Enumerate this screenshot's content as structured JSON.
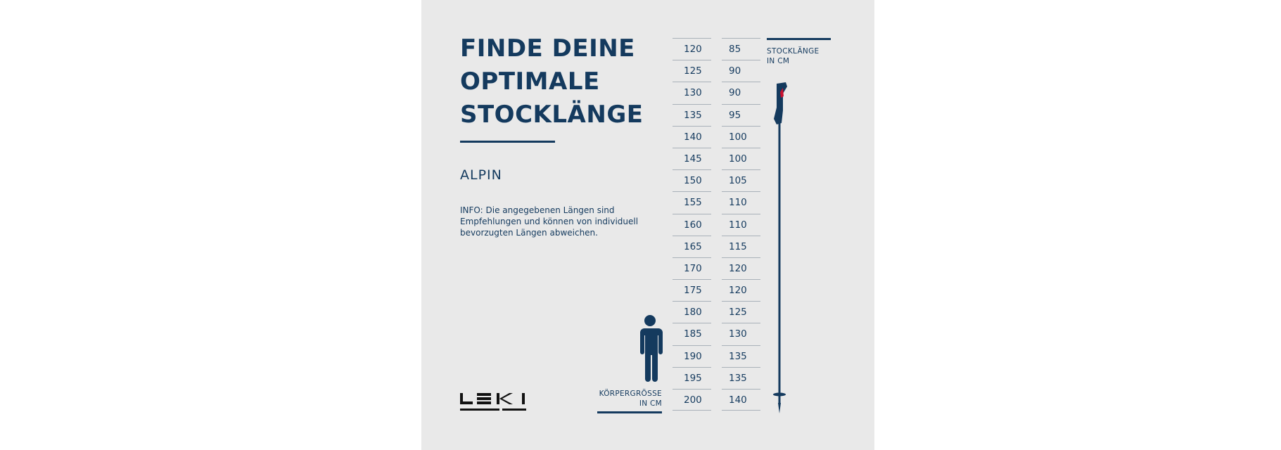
{
  "title": "FINDE DEINE OPTIMALE STOCKLÄNGE",
  "subtitle": "ALPIN",
  "info": "INFO: Die angegebenen Längen sind Empfehlungen und können von individuell bevorzugten Längen abweichen.",
  "logo_text": "LEKI",
  "height_label_line1": "KÖRPERGRÖSSE",
  "height_label_line2": "IN CM",
  "pole_label_line1": "STOCKLÄNGE",
  "pole_label_line2": "IN CM",
  "colors": {
    "primary": "#143a5e",
    "background": "#e9e9e9",
    "accent": "#c8102e"
  },
  "table": {
    "columns": [
      "Körpergröße in cm",
      "Stocklänge in cm"
    ],
    "rows": [
      [
        "120",
        "85"
      ],
      [
        "125",
        "90"
      ],
      [
        "130",
        "90"
      ],
      [
        "135",
        "95"
      ],
      [
        "140",
        "100"
      ],
      [
        "145",
        "100"
      ],
      [
        "150",
        "105"
      ],
      [
        "155",
        "110"
      ],
      [
        "160",
        "110"
      ],
      [
        "165",
        "115"
      ],
      [
        "170",
        "120"
      ],
      [
        "175",
        "120"
      ],
      [
        "180",
        "125"
      ],
      [
        "185",
        "130"
      ],
      [
        "190",
        "135"
      ],
      [
        "195",
        "135"
      ],
      [
        "200",
        "140"
      ]
    ]
  }
}
